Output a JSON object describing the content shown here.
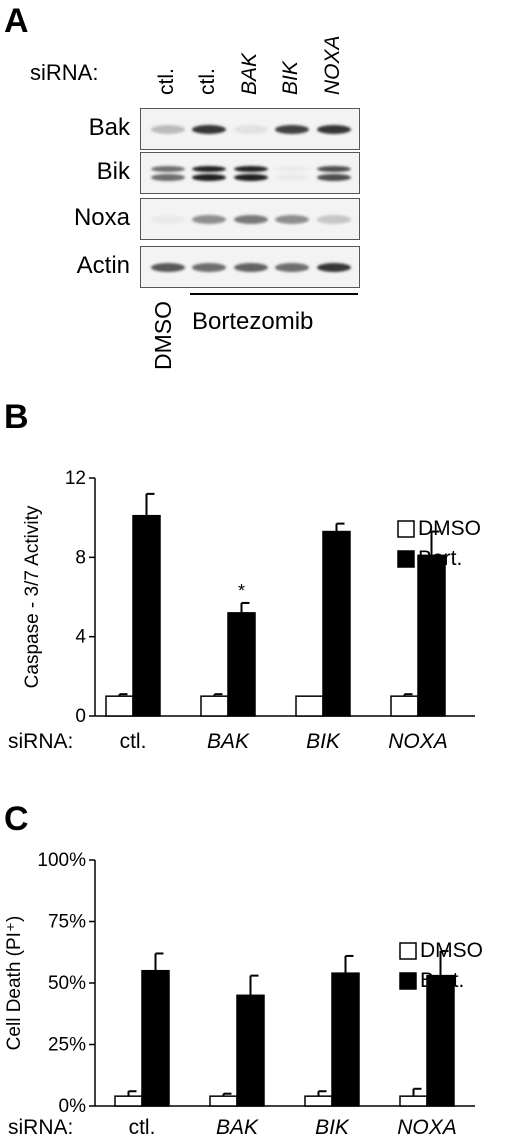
{
  "panel_a": {
    "letter": "A",
    "sirna_label": "siRNA:",
    "lanes": [
      "ctl.",
      "ctl.",
      "BAK",
      "BIK",
      "NOXA"
    ],
    "lanes_italic": [
      false,
      false,
      true,
      true,
      true
    ],
    "rows": [
      {
        "label": "Bak",
        "intensity": [
          0.25,
          0.85,
          0.08,
          0.8,
          0.85
        ],
        "doublet": false
      },
      {
        "label": "Bik",
        "intensity": [
          0.6,
          0.95,
          0.95,
          0.04,
          0.75
        ],
        "doublet": true
      },
      {
        "label": "Noxa",
        "intensity": [
          0.04,
          0.45,
          0.55,
          0.45,
          0.2
        ],
        "doublet": false
      },
      {
        "label": "Actin",
        "intensity": [
          0.7,
          0.6,
          0.65,
          0.6,
          0.85
        ],
        "doublet": false
      }
    ],
    "treatment_dmso": "DMSO",
    "treatment_drug": "Bortezomib"
  },
  "legend": {
    "dmso": "DMSO",
    "bort": "Bort.",
    "dmso_color": "#ffffff",
    "bort_color": "#000000"
  },
  "chart_data": [
    {
      "panel": "B",
      "type": "bar",
      "sirna_label": "siRNA:",
      "categories": [
        "ctl.",
        "BAK",
        "BIK",
        "NOXA"
      ],
      "categories_italic": [
        false,
        true,
        true,
        true
      ],
      "ylabel": "Caspase - 3/7 Activity",
      "ylim": [
        0,
        12
      ],
      "yticks": [
        "0",
        "4",
        "8",
        "12"
      ],
      "series": [
        {
          "name": "DMSO",
          "values": [
            1.0,
            1.0,
            1.0,
            1.0
          ],
          "errors": [
            0.1,
            0.1,
            0.0,
            0.1
          ]
        },
        {
          "name": "Bort.",
          "values": [
            10.1,
            5.2,
            9.3,
            8.1
          ],
          "errors": [
            1.1,
            0.5,
            0.4,
            1.2
          ]
        }
      ],
      "annotations": [
        {
          "category": "BAK",
          "series": "Bort.",
          "text": "*"
        }
      ],
      "legend_position": "right",
      "grid": false
    },
    {
      "panel": "C",
      "type": "bar",
      "sirna_label": "siRNA:",
      "categories": [
        "ctl.",
        "BAK",
        "BIK",
        "NOXA"
      ],
      "categories_italic": [
        false,
        true,
        true,
        true
      ],
      "ylabel": "Cell Death (PI⁺)",
      "ylim": [
        0,
        100
      ],
      "yticks": [
        "0%",
        "25%",
        "50%",
        "75%",
        "100%"
      ],
      "series": [
        {
          "name": "DMSO",
          "values": [
            4,
            4,
            4,
            4
          ],
          "errors": [
            2,
            1,
            2,
            3
          ]
        },
        {
          "name": "Bort.",
          "values": [
            55,
            45,
            54,
            53
          ],
          "errors": [
            7,
            8,
            7,
            10
          ]
        }
      ],
      "legend_position": "right",
      "grid": false
    }
  ]
}
